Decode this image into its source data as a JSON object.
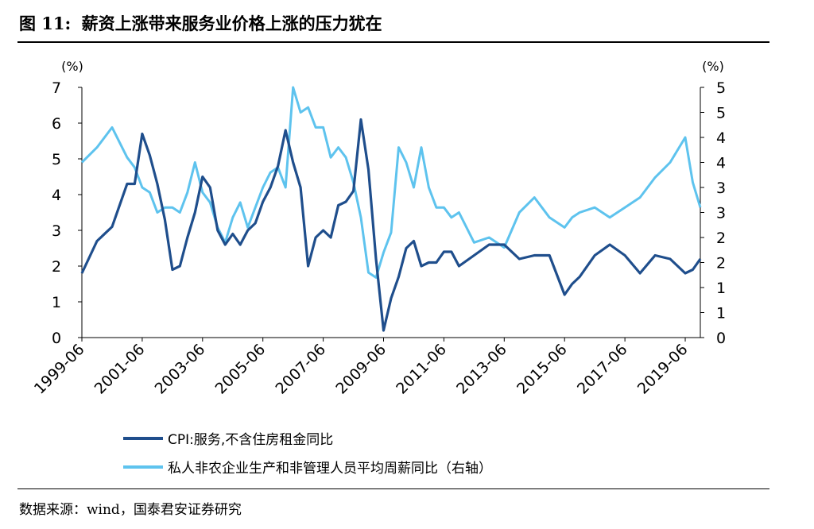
{
  "header": {
    "figure_number": "图 11:",
    "title": "薪资上涨带来服务业价格上涨的压力犹在"
  },
  "source_note": "数据来源：wind，国泰君安证券研究",
  "colors": {
    "cpi_services": "#1f4e8c",
    "wage_growth": "#5ec3ee"
  },
  "chart_data": {
    "type": "line",
    "left_axis": {
      "unit": "(%)",
      "range": [
        0,
        7
      ],
      "ticks": [
        "0",
        "1",
        "2",
        "3",
        "4",
        "5",
        "6",
        "7"
      ]
    },
    "right_axis": {
      "unit": "(%)",
      "range": [
        0,
        5
      ],
      "ticks": [
        "0",
        "0.5",
        "1",
        "1.5",
        "2",
        "2.5",
        "3",
        "3.5",
        "4",
        "4.5",
        "5"
      ],
      "tick_labels": [
        "0",
        "1",
        "1",
        "2",
        "2",
        "3",
        "3",
        "4",
        "4",
        "5",
        "5"
      ]
    },
    "x_range": [
      "1999-06",
      "2019-12"
    ],
    "x_tick_labels": [
      "1999-06",
      "2001-06",
      "2003-06",
      "2005-06",
      "2007-06",
      "2009-06",
      "2011-06",
      "2013-06",
      "2015-06",
      "2017-06",
      "2019-06"
    ],
    "legend_position": "bottom-left",
    "grid": false,
    "series": [
      {
        "name": "CPI:服务,不含住房租金同比",
        "axis": "left",
        "x": [
          "1999-06",
          "1999-12",
          "2000-06",
          "2000-12",
          "2001-03",
          "2001-06",
          "2001-09",
          "2001-12",
          "2002-03",
          "2002-06",
          "2002-09",
          "2002-12",
          "2003-03",
          "2003-06",
          "2003-09",
          "2003-12",
          "2004-03",
          "2004-06",
          "2004-09",
          "2004-12",
          "2005-03",
          "2005-06",
          "2005-09",
          "2005-12",
          "2006-03",
          "2006-06",
          "2006-09",
          "2006-12",
          "2007-03",
          "2007-06",
          "2007-09",
          "2007-12",
          "2008-03",
          "2008-06",
          "2008-09",
          "2008-12",
          "2009-03",
          "2009-06",
          "2009-09",
          "2009-12",
          "2010-03",
          "2010-06",
          "2010-09",
          "2010-12",
          "2011-03",
          "2011-06",
          "2011-09",
          "2011-12",
          "2012-06",
          "2012-12",
          "2013-06",
          "2013-12",
          "2014-06",
          "2014-12",
          "2015-06",
          "2015-09",
          "2015-12",
          "2016-06",
          "2016-12",
          "2017-06",
          "2017-12",
          "2018-06",
          "2018-12",
          "2019-06",
          "2019-09",
          "2019-12"
        ],
        "values": [
          1.8,
          2.7,
          3.1,
          4.3,
          4.3,
          5.7,
          5.1,
          4.3,
          3.3,
          1.9,
          2.0,
          2.8,
          3.5,
          4.5,
          4.2,
          3.0,
          2.6,
          2.9,
          2.6,
          3.0,
          3.2,
          3.8,
          4.2,
          4.8,
          5.8,
          4.9,
          4.2,
          2.0,
          2.8,
          3.0,
          2.8,
          3.7,
          3.8,
          4.1,
          6.1,
          4.7,
          2.2,
          0.2,
          1.1,
          1.7,
          2.5,
          2.7,
          2.0,
          2.1,
          2.1,
          2.4,
          2.4,
          2.0,
          2.3,
          2.6,
          2.6,
          2.2,
          2.3,
          2.3,
          1.2,
          1.5,
          1.7,
          2.3,
          2.6,
          2.3,
          1.8,
          2.3,
          2.2,
          1.8,
          1.9,
          2.2
        ]
      },
      {
        "name": "私人非农企业生产和非管理人员平均周薪同比（右轴）",
        "axis": "right",
        "x": [
          "1999-06",
          "1999-12",
          "2000-06",
          "2000-12",
          "2001-03",
          "2001-06",
          "2001-09",
          "2001-12",
          "2002-03",
          "2002-06",
          "2002-09",
          "2002-12",
          "2003-03",
          "2003-06",
          "2003-09",
          "2003-12",
          "2004-03",
          "2004-06",
          "2004-09",
          "2004-12",
          "2005-03",
          "2005-06",
          "2005-09",
          "2005-12",
          "2006-03",
          "2006-06",
          "2006-09",
          "2006-12",
          "2007-03",
          "2007-06",
          "2007-09",
          "2007-12",
          "2008-03",
          "2008-06",
          "2008-09",
          "2008-12",
          "2009-03",
          "2009-06",
          "2009-09",
          "2009-12",
          "2010-03",
          "2010-06",
          "2010-09",
          "2010-12",
          "2011-03",
          "2011-06",
          "2011-09",
          "2011-12",
          "2012-06",
          "2012-12",
          "2013-06",
          "2013-12",
          "2014-06",
          "2014-12",
          "2015-06",
          "2015-09",
          "2015-12",
          "2016-06",
          "2016-12",
          "2017-06",
          "2017-12",
          "2018-06",
          "2018-12",
          "2019-06",
          "2019-09",
          "2019-12"
        ],
        "values": [
          3.5,
          3.8,
          4.2,
          3.6,
          3.4,
          3.0,
          2.9,
          2.5,
          2.6,
          2.6,
          2.5,
          2.9,
          3.5,
          2.9,
          2.7,
          2.2,
          1.9,
          2.4,
          2.7,
          2.2,
          2.6,
          3.0,
          3.3,
          3.4,
          3.0,
          5.0,
          4.5,
          4.6,
          4.2,
          4.2,
          3.6,
          3.8,
          3.6,
          3.1,
          2.4,
          1.3,
          1.2,
          1.7,
          2.1,
          3.8,
          3.5,
          3.0,
          3.8,
          3.0,
          2.6,
          2.6,
          2.4,
          2.5,
          1.9,
          2.0,
          1.8,
          2.5,
          2.8,
          2.4,
          2.2,
          2.4,
          2.5,
          2.6,
          2.4,
          2.6,
          2.8,
          3.2,
          3.5,
          4.0,
          3.1,
          2.6
        ]
      }
    ]
  }
}
